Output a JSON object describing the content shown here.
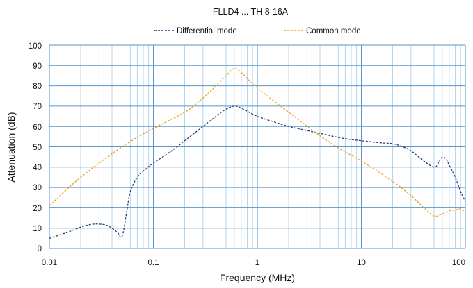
{
  "chart_data": {
    "type": "line",
    "title": "FLLD4 ... TH   8-16A",
    "xlabel": "Frequency (MHz)",
    "ylabel": "Attenuation (dB)",
    "xscale": "log",
    "xlim": [
      0.01,
      100
    ],
    "ylim": [
      0,
      100
    ],
    "x_ticks": [
      "0.01",
      "0.1",
      "1",
      "10",
      "100"
    ],
    "y_ticks": [
      "0",
      "10",
      "20",
      "30",
      "40",
      "50",
      "60",
      "70",
      "80",
      "90",
      "100"
    ],
    "grid": true,
    "legend_position": "top",
    "series": [
      {
        "name": "Differential mode",
        "color": "#1f3b7a",
        "dash": "dashed",
        "points": [
          [
            0.01,
            5
          ],
          [
            0.015,
            8
          ],
          [
            0.02,
            10.5
          ],
          [
            0.025,
            11.8
          ],
          [
            0.03,
            12
          ],
          [
            0.035,
            11.5
          ],
          [
            0.04,
            10
          ],
          [
            0.045,
            8
          ],
          [
            0.05,
            6
          ],
          [
            0.055,
            17
          ],
          [
            0.06,
            28
          ],
          [
            0.07,
            35
          ],
          [
            0.08,
            38
          ],
          [
            0.1,
            42
          ],
          [
            0.15,
            48
          ],
          [
            0.2,
            53
          ],
          [
            0.3,
            60
          ],
          [
            0.4,
            65
          ],
          [
            0.5,
            68.5
          ],
          [
            0.6,
            70
          ],
          [
            0.7,
            69
          ],
          [
            1,
            65
          ],
          [
            1.5,
            62
          ],
          [
            2,
            60
          ],
          [
            3,
            58
          ],
          [
            5,
            55.5
          ],
          [
            7,
            54
          ],
          [
            10,
            53
          ],
          [
            15,
            52
          ],
          [
            20,
            51.5
          ],
          [
            25,
            50
          ],
          [
            30,
            48
          ],
          [
            40,
            43
          ],
          [
            50,
            40
          ],
          [
            55,
            42
          ],
          [
            60,
            45
          ],
          [
            65,
            44
          ],
          [
            70,
            41
          ],
          [
            80,
            35
          ],
          [
            90,
            28
          ],
          [
            100,
            23
          ]
        ]
      },
      {
        "name": "Common mode",
        "color": "#e8a317",
        "dash": "dashed",
        "points": [
          [
            0.01,
            21
          ],
          [
            0.02,
            35
          ],
          [
            0.05,
            50
          ],
          [
            0.1,
            59
          ],
          [
            0.2,
            67
          ],
          [
            0.3,
            74
          ],
          [
            0.4,
            80
          ],
          [
            0.5,
            85
          ],
          [
            0.6,
            88.5
          ],
          [
            0.7,
            86.5
          ],
          [
            1,
            79
          ],
          [
            2,
            67
          ],
          [
            5,
            52
          ],
          [
            10,
            43
          ],
          [
            20,
            33
          ],
          [
            30,
            26
          ],
          [
            40,
            20
          ],
          [
            50,
            16
          ],
          [
            60,
            17
          ],
          [
            70,
            18.5
          ],
          [
            80,
            19
          ],
          [
            90,
            19.5
          ],
          [
            100,
            18
          ]
        ]
      }
    ]
  }
}
